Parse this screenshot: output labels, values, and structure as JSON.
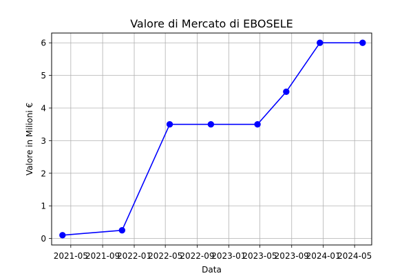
{
  "chart_data": {
    "type": "line",
    "title": "Valore di Mercato di EBOSELE",
    "xlabel": "Data",
    "ylabel": "Valore in Milioni €",
    "x_axis_type": "date",
    "x_ticks": [
      "2021-05-01",
      "2021-09-01",
      "2022-01-01",
      "2022-05-01",
      "2022-09-01",
      "2023-01-01",
      "2023-05-01",
      "2023-09-01",
      "2024-01-01",
      "2024-05-01"
    ],
    "x_tick_labels": [
      "2021-05",
      "2021-09",
      "2022-01",
      "2022-05",
      "2022-09",
      "2023-01",
      "2023-05",
      "2023-09",
      "2024-01",
      "2024-05"
    ],
    "y_ticks": [
      0,
      1,
      2,
      3,
      4,
      5,
      6
    ],
    "y_tick_labels": [
      "0",
      "1",
      "2",
      "3",
      "4",
      "5",
      "6"
    ],
    "xlim": [
      "2021-02-16",
      "2024-07-06"
    ],
    "ylim": [
      -0.2,
      6.3
    ],
    "grid": true,
    "series": [
      {
        "color": "#0000ff",
        "marker": "circle",
        "points": [
          {
            "x": "2021-03-30",
            "y": 0.1
          },
          {
            "x": "2021-11-15",
            "y": 0.25
          },
          {
            "x": "2022-05-18",
            "y": 3.5
          },
          {
            "x": "2022-10-24",
            "y": 3.5
          },
          {
            "x": "2023-04-22",
            "y": 3.5
          },
          {
            "x": "2023-08-11",
            "y": 4.5
          },
          {
            "x": "2023-12-19",
            "y": 6.0
          },
          {
            "x": "2024-06-01",
            "y": 6.0
          }
        ]
      }
    ]
  }
}
